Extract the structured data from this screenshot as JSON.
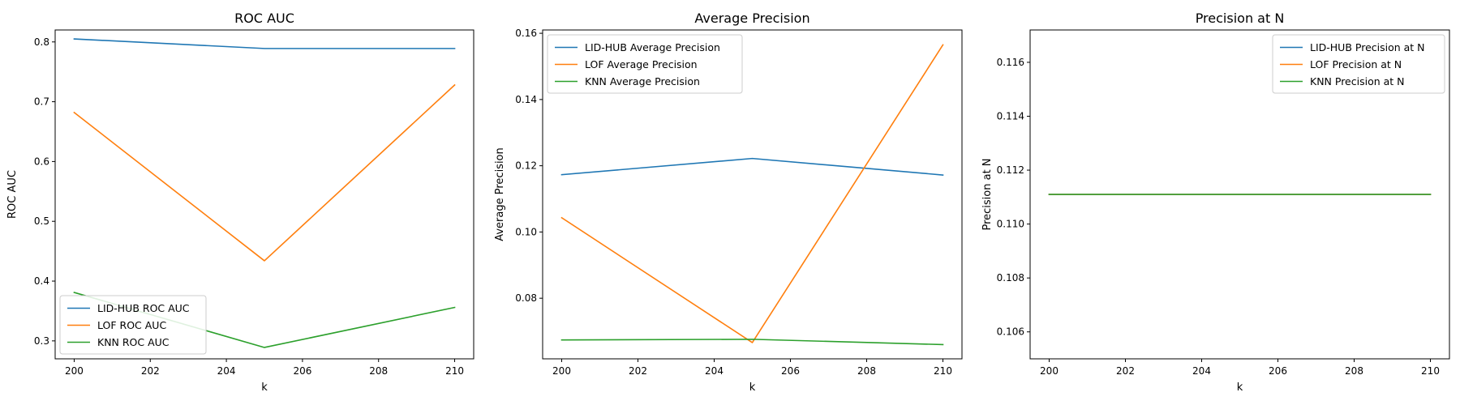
{
  "chart_data": [
    {
      "type": "line",
      "title": "ROC AUC",
      "xlabel": "k",
      "ylabel": "ROC AUC",
      "x": [
        200,
        205,
        210
      ],
      "xlim": [
        199.5,
        210.5
      ],
      "ylim": [
        0.27,
        0.82
      ],
      "xticks": [
        200,
        202,
        204,
        206,
        208,
        210
      ],
      "xtick_labels": [
        "200",
        "202",
        "204",
        "206",
        "208",
        "210"
      ],
      "yticks": [
        0.3,
        0.4,
        0.5,
        0.6,
        0.7,
        0.8
      ],
      "ytick_labels": [
        "0.3",
        "0.4",
        "0.5",
        "0.6",
        "0.7",
        "0.8"
      ],
      "grid": false,
      "legend_position": "lower-left",
      "series": [
        {
          "name": "LID-HUB ROC AUC",
          "color": "#1f77b4",
          "values": [
            0.805,
            0.789,
            0.789
          ]
        },
        {
          "name": "LOF ROC AUC",
          "color": "#ff7f0e",
          "values": [
            0.682,
            0.434,
            0.728
          ]
        },
        {
          "name": "KNN ROC AUC",
          "color": "#2ca02c",
          "values": [
            0.381,
            0.289,
            0.356
          ]
        }
      ]
    },
    {
      "type": "line",
      "title": "Average Precision",
      "xlabel": "k",
      "ylabel": "Average Precision",
      "x": [
        200,
        205,
        210
      ],
      "xlim": [
        199.5,
        210.5
      ],
      "ylim": [
        0.0617,
        0.161
      ],
      "xticks": [
        200,
        202,
        204,
        206,
        208,
        210
      ],
      "xtick_labels": [
        "200",
        "202",
        "204",
        "206",
        "208",
        "210"
      ],
      "yticks": [
        0.08,
        0.1,
        0.12,
        0.14,
        0.16
      ],
      "ytick_labels": [
        "0.08",
        "0.10",
        "0.12",
        "0.14",
        "0.16"
      ],
      "grid": false,
      "legend_position": "upper-left",
      "series": [
        {
          "name": "LID-HUB Average Precision",
          "color": "#1f77b4",
          "values": [
            0.1173,
            0.1222,
            0.1172
          ]
        },
        {
          "name": "LOF Average Precision",
          "color": "#ff7f0e",
          "values": [
            0.1043,
            0.0666,
            0.1565
          ]
        },
        {
          "name": "KNN Average Precision",
          "color": "#2ca02c",
          "values": [
            0.0674,
            0.0676,
            0.066
          ]
        }
      ]
    },
    {
      "type": "line",
      "title": "Precision at N",
      "xlabel": "k",
      "ylabel": "Precision at N",
      "x": [
        200,
        205,
        210
      ],
      "xlim": [
        199.5,
        210.5
      ],
      "ylim": [
        0.105,
        0.1172
      ],
      "xticks": [
        200,
        202,
        204,
        206,
        208,
        210
      ],
      "xtick_labels": [
        "200",
        "202",
        "204",
        "206",
        "208",
        "210"
      ],
      "yticks": [
        0.106,
        0.108,
        0.11,
        0.112,
        0.114,
        0.116
      ],
      "ytick_labels": [
        "0.106",
        "0.108",
        "0.110",
        "0.112",
        "0.114",
        "0.116"
      ],
      "grid": false,
      "legend_position": "upper-right",
      "series": [
        {
          "name": "LID-HUB Precision at N",
          "color": "#1f77b4",
          "values": [
            0.1111,
            0.1111,
            0.1111
          ]
        },
        {
          "name": "LOF Precision at N",
          "color": "#ff7f0e",
          "values": [
            0.1111,
            0.1111,
            0.1111
          ]
        },
        {
          "name": "KNN Precision at N",
          "color": "#2ca02c",
          "values": [
            0.1111,
            0.1111,
            0.1111
          ]
        }
      ]
    }
  ]
}
